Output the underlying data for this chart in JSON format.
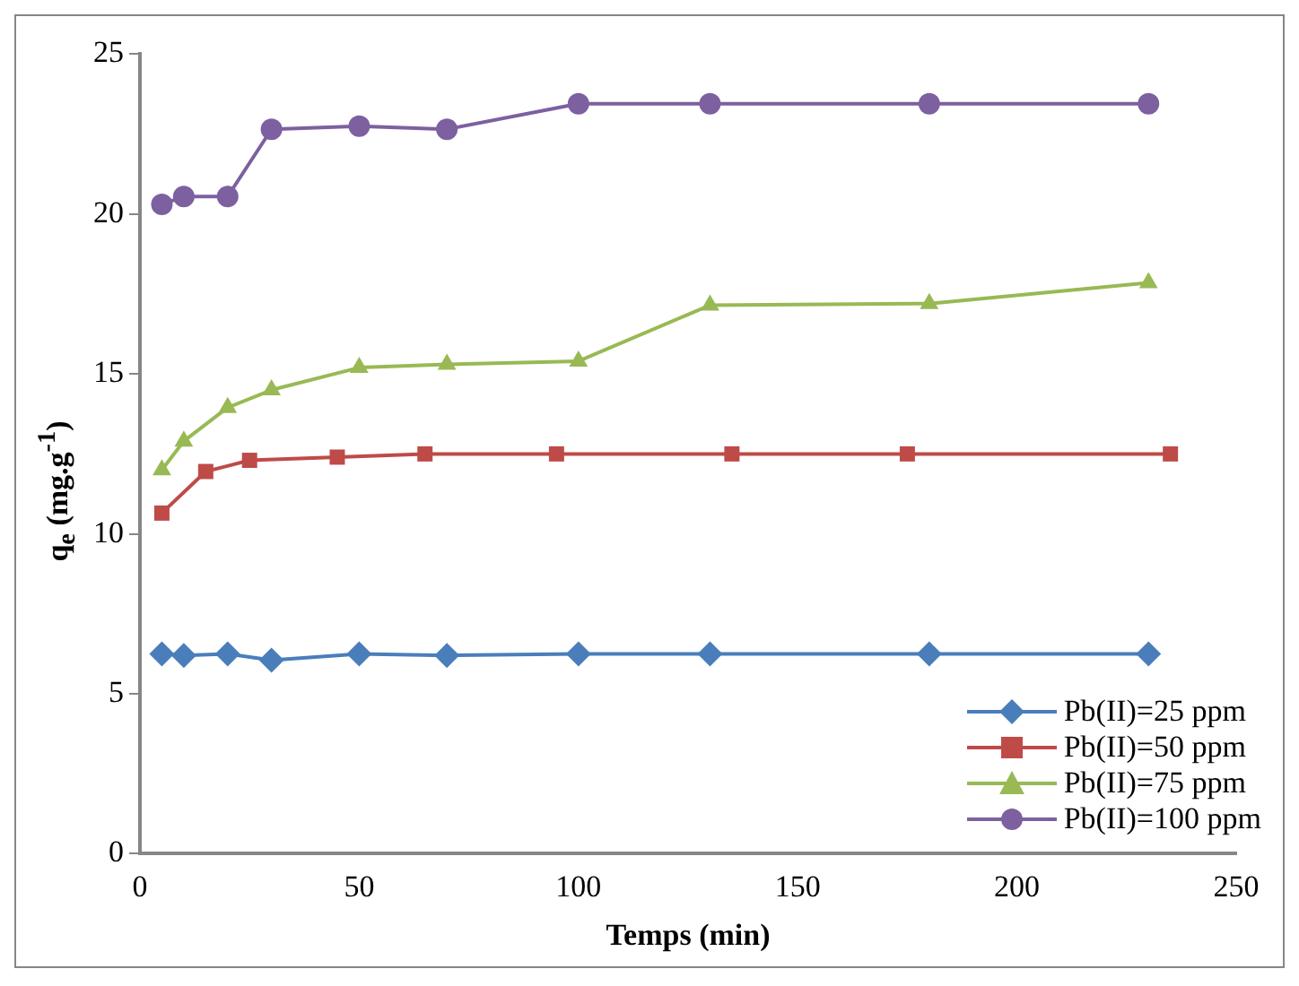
{
  "chart_data": {
    "type": "line",
    "xlabel": "Temps (min)",
    "ylabel": "q$_{e}$ (mg.g$^{-1}$)",
    "xlim": [
      0,
      250
    ],
    "xticks": [
      0,
      50,
      100,
      150,
      200,
      250
    ],
    "ylim": [
      0,
      25
    ],
    "yticks": [
      0,
      5,
      10,
      15,
      20,
      25
    ],
    "grid": false,
    "legend": "bottom right",
    "line_style": "solid",
    "series": [
      {
        "name": "Pb(II)=25 ppm",
        "color": "#4a7ebb",
        "marker": "diamond",
        "x": [
          5,
          10,
          20,
          30,
          50,
          70,
          100,
          130,
          180,
          230
        ],
        "values": [
          6.25,
          6.2,
          6.25,
          6.05,
          6.25,
          6.2,
          6.25,
          6.25,
          6.25,
          6.25
        ]
      },
      {
        "name": "Pb(II)=50 ppm",
        "color": "#be4b48",
        "marker": "square",
        "x": [
          5,
          15,
          25,
          45,
          65,
          95,
          135,
          175,
          235
        ],
        "values": [
          10.65,
          11.95,
          12.3,
          12.4,
          12.5,
          12.5,
          12.5,
          12.5,
          12.5
        ]
      },
      {
        "name": "Pb(II)=75 ppm",
        "color": "#98b954",
        "marker": "triangle",
        "x": [
          5,
          10,
          20,
          30,
          50,
          70,
          100,
          130,
          180,
          230
        ],
        "values": [
          12.0,
          12.9,
          13.95,
          14.5,
          15.2,
          15.3,
          15.4,
          17.15,
          17.2,
          17.85
        ]
      },
      {
        "name": "Pb(II)=100 ppm",
        "color": "#7d60a0",
        "marker": "circle",
        "x": [
          5,
          10,
          20,
          30,
          50,
          70,
          100,
          130,
          180,
          230
        ],
        "values": [
          20.3,
          20.55,
          20.55,
          22.65,
          22.75,
          22.65,
          23.45,
          23.45,
          23.45,
          23.45
        ]
      }
    ]
  }
}
